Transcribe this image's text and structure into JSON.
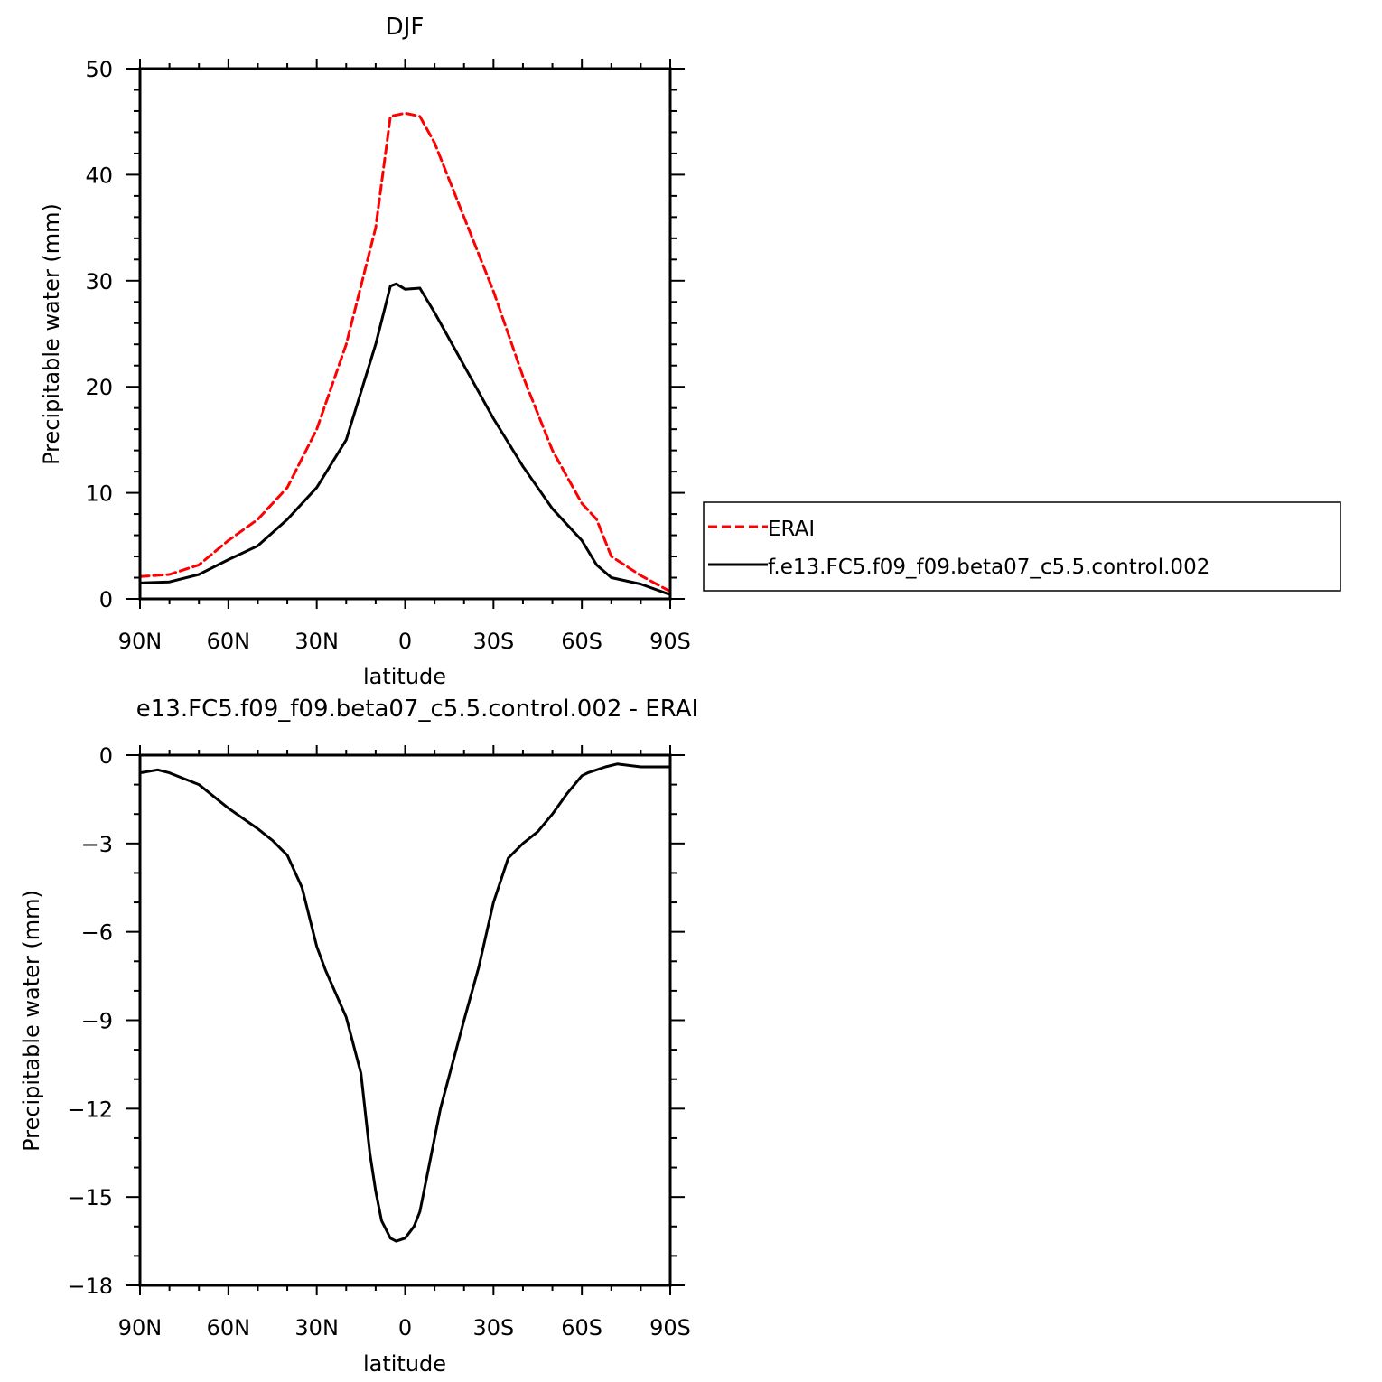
{
  "chart_data": [
    {
      "type": "line",
      "title": "DJF",
      "xlabel": "latitude",
      "ylabel": "Precipitable water (mm)",
      "xlim": [
        90,
        -90
      ],
      "ylim": [
        0,
        50
      ],
      "x_ticks": [
        {
          "value": 90,
          "label": "90N"
        },
        {
          "value": 60,
          "label": "60N"
        },
        {
          "value": 30,
          "label": "30N"
        },
        {
          "value": 0,
          "label": "0"
        },
        {
          "value": -30,
          "label": "30S"
        },
        {
          "value": -60,
          "label": "60S"
        },
        {
          "value": -90,
          "label": "90S"
        }
      ],
      "y_ticks": [
        0,
        10,
        20,
        30,
        40,
        50
      ],
      "legend": {
        "placement": "right"
      },
      "series": [
        {
          "name": "ERAI",
          "color": "#ff0000",
          "style": "dashed",
          "x": [
            90,
            80,
            70,
            60,
            50,
            40,
            30,
            20,
            10,
            5,
            0,
            -5,
            -10,
            -20,
            -30,
            -40,
            -50,
            -60,
            -65,
            -70,
            -80,
            -90
          ],
          "y": [
            2.1,
            2.3,
            3.2,
            5.5,
            7.5,
            10.5,
            16,
            24,
            35,
            45.5,
            45.8,
            45.5,
            43,
            36,
            29,
            21,
            14,
            9,
            7.5,
            4,
            2.2,
            0.7
          ]
        },
        {
          "name": "f.e13.FC5.f09_f09.beta07_c5.5.control.002",
          "color": "#000000",
          "style": "solid",
          "x": [
            90,
            80,
            70,
            60,
            50,
            40,
            30,
            20,
            10,
            5,
            3,
            0,
            -5,
            -10,
            -20,
            -30,
            -40,
            -50,
            -60,
            -65,
            -70,
            -80,
            -90
          ],
          "y": [
            1.5,
            1.6,
            2.3,
            3.7,
            5.0,
            7.5,
            10.5,
            15,
            24,
            29.5,
            29.7,
            29.2,
            29.3,
            27,
            22,
            17,
            12.5,
            8.5,
            5.5,
            3.2,
            2.0,
            1.4,
            0.4
          ]
        }
      ]
    },
    {
      "type": "line",
      "title": "e13.FC5.f09_f09.beta07_c5.5.control.002 - ERAI",
      "xlabel": "latitude",
      "ylabel": "Precipitable water (mm)",
      "xlim": [
        90,
        -90
      ],
      "ylim": [
        -18,
        0
      ],
      "x_ticks": [
        {
          "value": 90,
          "label": "90N"
        },
        {
          "value": 60,
          "label": "60N"
        },
        {
          "value": 30,
          "label": "30N"
        },
        {
          "value": 0,
          "label": "0"
        },
        {
          "value": -30,
          "label": "30S"
        },
        {
          "value": -60,
          "label": "60S"
        },
        {
          "value": -90,
          "label": "90S"
        }
      ],
      "y_ticks": [
        0,
        -3,
        -6,
        -9,
        -12,
        -15,
        -18
      ],
      "series": [
        {
          "color": "#000000",
          "style": "solid",
          "x": [
            90,
            84,
            80,
            70,
            60,
            50,
            45,
            40,
            35,
            30,
            27,
            20,
            15,
            12,
            10,
            8,
            5,
            3,
            0,
            -3,
            -5,
            -8,
            -12,
            -16,
            -20,
            -25,
            -30,
            -35,
            -40,
            -45,
            -50,
            -55,
            -60,
            -62,
            -65,
            -68,
            -72,
            -80,
            -85,
            -90
          ],
          "y": [
            -0.6,
            -0.5,
            -0.6,
            -1.0,
            -1.8,
            -2.5,
            -2.9,
            -3.4,
            -4.5,
            -6.5,
            -7.3,
            -8.9,
            -10.8,
            -13.5,
            -14.8,
            -15.8,
            -16.4,
            -16.5,
            -16.4,
            -16.0,
            -15.5,
            -14.0,
            -12.0,
            -10.5,
            -9.0,
            -7.2,
            -5.0,
            -3.5,
            -3.0,
            -2.6,
            -2.0,
            -1.3,
            -0.7,
            -0.6,
            -0.5,
            -0.4,
            -0.3,
            -0.4,
            -0.4,
            -0.4
          ]
        }
      ]
    }
  ]
}
